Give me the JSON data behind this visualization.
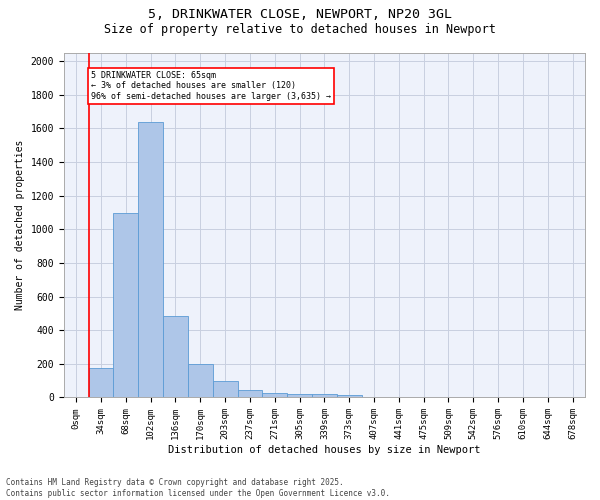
{
  "title_line1": "5, DRINKWATER CLOSE, NEWPORT, NP20 3GL",
  "title_line2": "Size of property relative to detached houses in Newport",
  "xlabel": "Distribution of detached houses by size in Newport",
  "ylabel": "Number of detached properties",
  "bar_labels": [
    "0sqm",
    "34sqm",
    "68sqm",
    "102sqm",
    "136sqm",
    "170sqm",
    "203sqm",
    "237sqm",
    "271sqm",
    "305sqm",
    "339sqm",
    "373sqm",
    "407sqm",
    "441sqm",
    "475sqm",
    "509sqm",
    "542sqm",
    "576sqm",
    "610sqm",
    "644sqm",
    "678sqm"
  ],
  "bar_values": [
    0,
    175,
    1095,
    1635,
    485,
    200,
    100,
    43,
    28,
    22,
    22,
    13,
    0,
    0,
    0,
    0,
    0,
    0,
    0,
    0,
    0
  ],
  "bar_color": "#aec6e8",
  "bar_edge_color": "#5b9bd5",
  "bg_color": "#eef2fb",
  "grid_color": "#c8cfe0",
  "vline_x": 1.0,
  "vline_color": "red",
  "annotation_text": "5 DRINKWATER CLOSE: 65sqm\n← 3% of detached houses are smaller (120)\n96% of semi-detached houses are larger (3,635) →",
  "annotation_box_color": "red",
  "ylim": [
    0,
    2050
  ],
  "yticks": [
    0,
    200,
    400,
    600,
    800,
    1000,
    1200,
    1400,
    1600,
    1800,
    2000
  ],
  "footer_line1": "Contains HM Land Registry data © Crown copyright and database right 2025.",
  "footer_line2": "Contains public sector information licensed under the Open Government Licence v3.0."
}
